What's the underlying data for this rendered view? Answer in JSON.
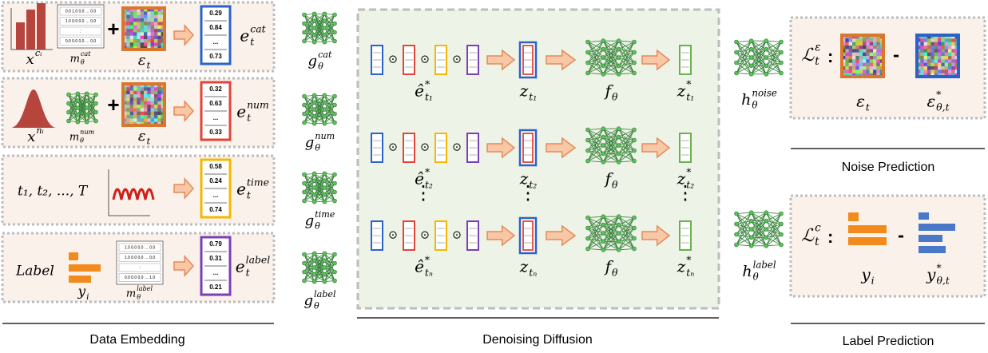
{
  "embedding": {
    "caption": "Data Embedding",
    "rows": [
      {
        "input": {
          "base": "x",
          "sup": "cᵢ"
        },
        "matrix": [
          "0.0 1.0 0.0 … 0.0",
          "1.0 0.0 0.0 … 0.0",
          ":",
          "0.0 0.0 0.0 … 0.0"
        ],
        "mask": {
          "base": "m",
          "sub": "θ",
          "sup": "cat"
        },
        "plus": "+",
        "noise": {
          "base": "ε",
          "sub": "t"
        },
        "vector": [
          "0.29",
          "0.84",
          "...",
          "0.73"
        ],
        "output": {
          "base": "e",
          "sub": "t",
          "sup": "cat"
        }
      },
      {
        "input": {
          "base": "x",
          "sup": "nᵢ"
        },
        "mask": {
          "base": "m",
          "sub": "θ",
          "sup": "num"
        },
        "plus": "+",
        "noise": {
          "base": "ε",
          "sub": "t"
        },
        "vector": [
          "0.32",
          "0.63",
          "...",
          "0.33"
        ],
        "output": {
          "base": "e",
          "sub": "t",
          "sup": "num"
        }
      },
      {
        "input": "t₁, t₂, ..., T",
        "vector": [
          "0.58",
          "0.24",
          "...",
          "0.74"
        ],
        "output": {
          "base": "e",
          "sub": "t",
          "sup": "time"
        }
      },
      {
        "input": "Label",
        "target": {
          "base": "y",
          "sub": "i"
        },
        "matrix": [
          "1.0 0.0 0.0 … 0.0",
          "1.0 0.0 0.0 … 0.0",
          ":",
          "0.0 0.0 0.0 … 1.0"
        ],
        "mask": {
          "base": "m",
          "sub": "θ",
          "sup": "label"
        },
        "vector": [
          "0.79",
          "0.31",
          "...",
          "0.21"
        ],
        "output": {
          "base": "e",
          "sub": "t",
          "sup": "label"
        }
      }
    ]
  },
  "encoders": [
    {
      "base": "g",
      "sub": "θ",
      "sup": "cat"
    },
    {
      "base": "g",
      "sub": "θ",
      "sup": "num"
    },
    {
      "base": "g",
      "sub": "θ",
      "sup": "time"
    },
    {
      "base": "g",
      "sub": "θ",
      "sup": "label"
    }
  ],
  "diffusion": {
    "caption": "Denoising Diffusion",
    "odot": "⊙",
    "ellipsis": "⋮",
    "rows": [
      {
        "input": {
          "base": "ê",
          "sup": "*",
          "sub": "t₁"
        },
        "latent": {
          "base": "z",
          "sub": "t₁"
        },
        "model": {
          "base": "f",
          "sub": "θ"
        },
        "output": {
          "base": "z",
          "sup": "*",
          "sub": "t₁"
        }
      },
      {
        "input": {
          "base": "ê",
          "sup": "*",
          "sub": "t₂"
        },
        "latent": {
          "base": "z",
          "sub": "t₂"
        },
        "model": {
          "base": "f",
          "sub": "θ"
        },
        "output": {
          "base": "z",
          "sup": "*",
          "sub": "t₂"
        }
      },
      {
        "input": {
          "base": "ê",
          "sup": "*",
          "sub": "tₙ"
        },
        "latent": {
          "base": "z",
          "sub": "tₙ"
        },
        "model": {
          "base": "f",
          "sub": "θ"
        },
        "output": {
          "base": "z",
          "sup": "*",
          "sub": "tₙ"
        }
      }
    ]
  },
  "heads": [
    {
      "base": "h",
      "sub": "θ",
      "sup": "noise"
    },
    {
      "base": "h",
      "sub": "θ",
      "sup": "label"
    }
  ],
  "noise_prediction": {
    "caption": "Noise Prediction",
    "loss": {
      "base": "ℒ",
      "sub": "t",
      "sup": "ε"
    },
    "colon": ":",
    "minus": "-",
    "target": {
      "base": "ε",
      "sub": "t"
    },
    "prediction": {
      "base": "ε",
      "sup": "*",
      "sub": "θ,t"
    }
  },
  "label_prediction": {
    "caption": "Label Prediction",
    "loss": {
      "base": "ℒ",
      "sub": "t",
      "sup": "c"
    },
    "colon": ":",
    "minus": "-",
    "target": {
      "base": "y",
      "sub": "i"
    },
    "prediction": {
      "base": "y",
      "sup": "*",
      "sub": "θ,t"
    }
  }
}
